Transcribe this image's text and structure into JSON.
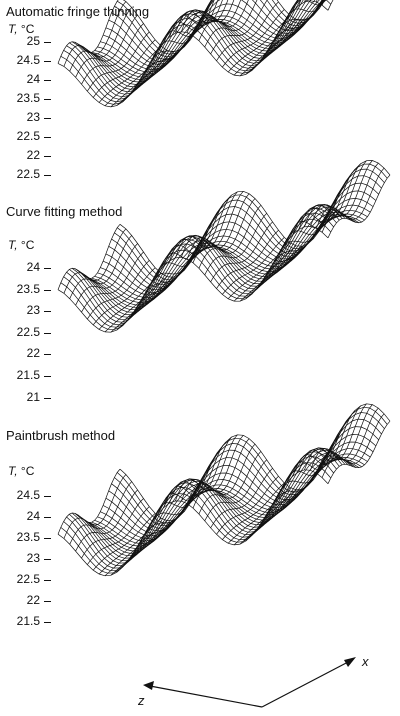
{
  "chart_data": [
    {
      "type": "surface",
      "title": "Automatic fringe thinning",
      "ylabel": "T,",
      "yunit": "°C",
      "ticks": [
        "25",
        "24.5",
        "24",
        "23.5",
        "23",
        "22.5",
        "22",
        "22.5"
      ],
      "zlim": [
        22,
        25
      ],
      "xlabel": "x",
      "zlabel": "z"
    },
    {
      "type": "surface",
      "title": "Curve fitting method",
      "ylabel": "T,",
      "yunit": "°C",
      "ticks": [
        "24",
        "23.5",
        "23",
        "22.5",
        "22",
        "21.5",
        "21"
      ],
      "zlim": [
        21,
        24
      ],
      "xlabel": "x",
      "zlabel": "z"
    },
    {
      "type": "surface",
      "title": "Paintbrush method",
      "ylabel": "T,",
      "yunit": "°C",
      "ticks": [
        "24.5",
        "24",
        "23.5",
        "23",
        "22.5",
        "22",
        "21.5"
      ],
      "zlim": [
        21.5,
        24.5
      ],
      "xlabel": "x",
      "zlabel": "z"
    }
  ],
  "axes": {
    "x_label": "x",
    "z_label": "z"
  }
}
